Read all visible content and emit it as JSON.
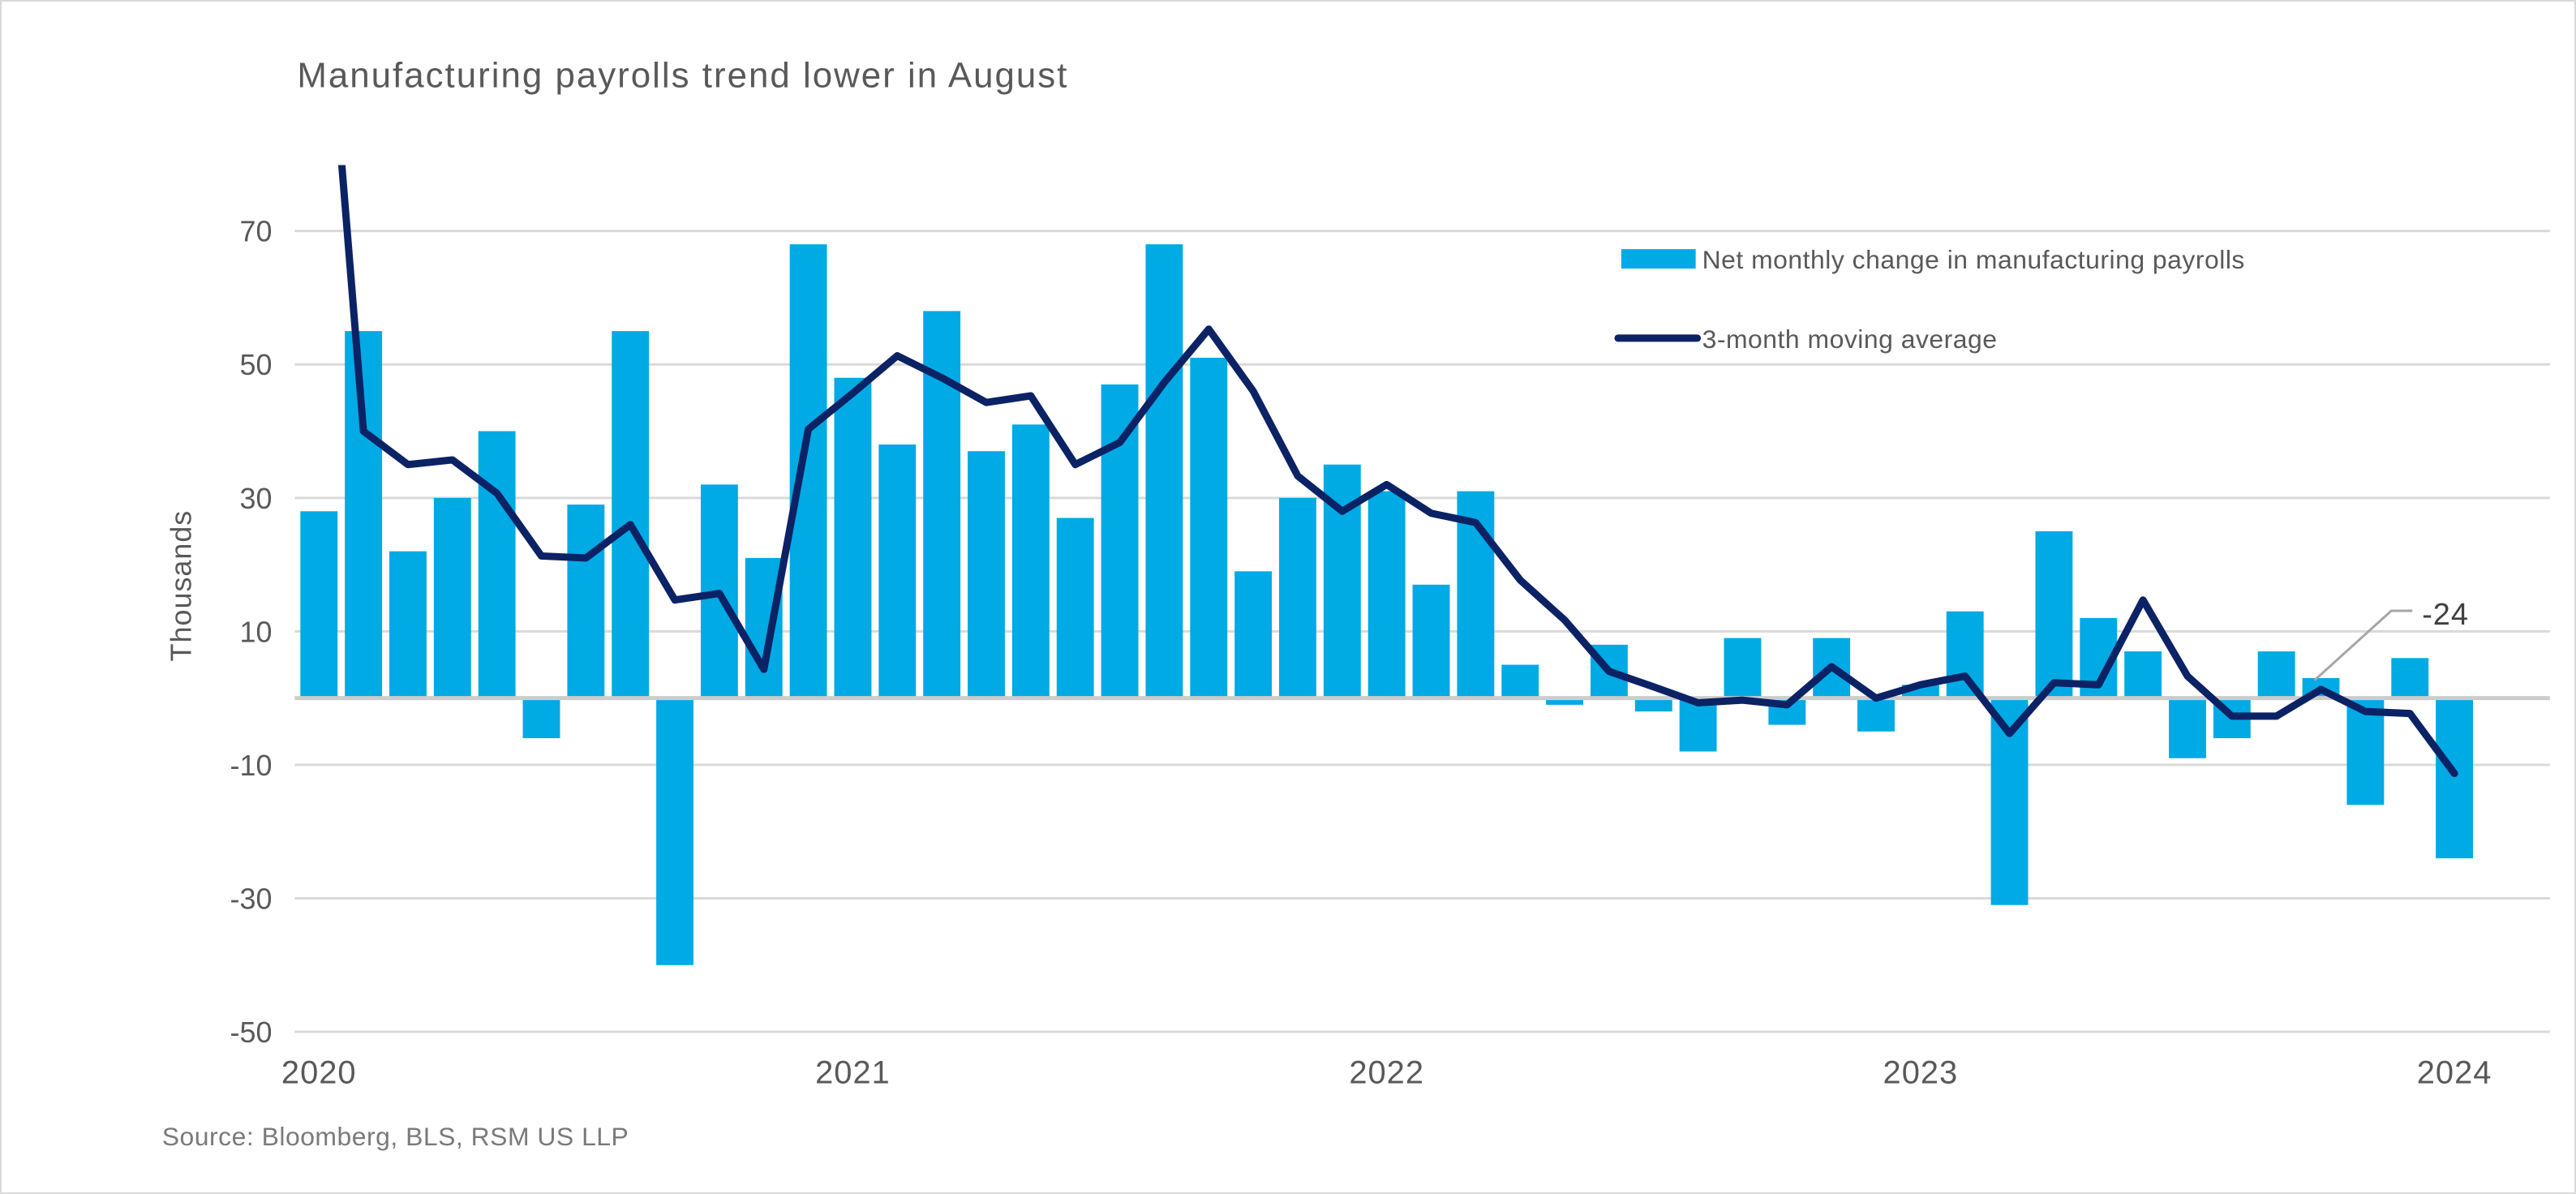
{
  "title": "Manufacturing payrolls trend lower in August",
  "source": "Source: Bloomberg, BLS, RSM US LLP",
  "colors": {
    "bar": "#00AAE4",
    "line": "#0B2265",
    "title_text": "#595959",
    "axis_text": "#595959",
    "source_text": "#7a7a7a",
    "gridline": "#d9d9d9",
    "zero_line": "#cccccc",
    "annotation_text": "#404040",
    "leader_line": "#a6a6a6",
    "background": "#ffffff",
    "border": "#d9d9d9"
  },
  "legend": {
    "items": [
      {
        "label": "Net monthly change in manufacturing payrolls",
        "marker": "bar-swatch"
      },
      {
        "label": "3-month moving average",
        "marker": "line-swatch"
      }
    ]
  },
  "y_axis": {
    "label": "Thousands",
    "ticks": [
      70,
      50,
      30,
      10,
      -10,
      -30,
      -50
    ]
  },
  "x_axis": {
    "year_ticks": [
      {
        "label": "2020",
        "bar_index": 0
      },
      {
        "label": "2021",
        "bar_index": 12
      },
      {
        "label": "2022",
        "bar_index": 24
      },
      {
        "label": "2023",
        "bar_index": 36
      },
      {
        "label": "2024",
        "bar_index": 48
      }
    ]
  },
  "annotation": {
    "label": "-24"
  },
  "chart_data": {
    "type": "bar",
    "title": "Manufacturing payrolls trend lower in August",
    "ylabel": "Thousands",
    "ylim": [
      -50,
      80
    ],
    "grid": "horizontal",
    "legend_position": "inside-top-right",
    "x_start": "2020-01",
    "x_interval": "month",
    "n_points": 49,
    "x_year_label_indices": [
      0,
      12,
      24,
      36,
      48
    ],
    "series": [
      {
        "name": "Net monthly change in manufacturing payrolls",
        "type": "bar",
        "values": [
          28,
          55,
          22,
          30,
          40,
          -6,
          29,
          55,
          -40,
          32,
          21,
          68,
          48,
          38,
          58,
          37,
          41,
          27,
          47,
          68,
          51,
          19,
          30,
          35,
          31,
          17,
          31,
          5,
          -1,
          8,
          -2,
          -8,
          9,
          -4,
          9,
          -5,
          2,
          13,
          -31,
          25,
          12,
          7,
          -9,
          -6,
          7,
          3,
          -16,
          6,
          -24
        ]
      },
      {
        "name": "3-month moving average",
        "type": "line",
        "values": [
          122,
          40,
          35,
          35.7,
          30.7,
          21.3,
          21,
          26,
          14.7,
          15.7,
          4.3,
          40.3,
          45.7,
          51.3,
          48,
          44.3,
          45.3,
          35,
          38.3,
          47.3,
          55.3,
          46,
          33.3,
          28,
          32,
          27.7,
          26.3,
          17.7,
          11.7,
          4,
          1.7,
          -0.7,
          -0.3,
          -1,
          4.7,
          0,
          2,
          3.3,
          -5.3,
          2.3,
          2,
          14.7,
          3.3,
          -2.7,
          -2.7,
          1.3,
          -2,
          -2.3,
          -11.3
        ],
        "first_point_clipped_offchart": true,
        "last_value_annotated": "-24"
      }
    ]
  }
}
